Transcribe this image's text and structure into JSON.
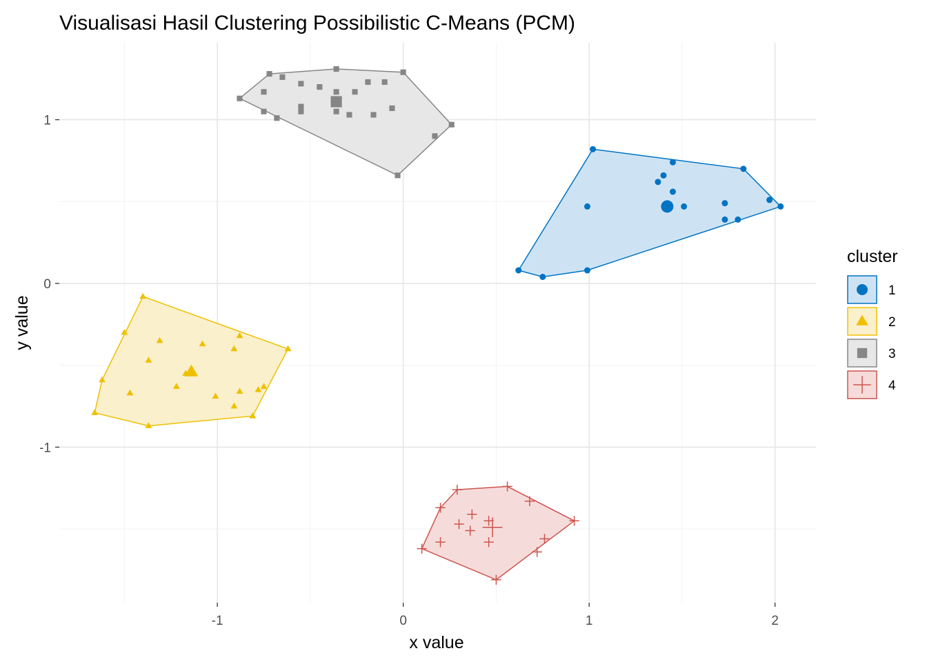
{
  "chart_data": {
    "type": "scatter",
    "title": "Visualisasi Hasil Clustering Possibilistic C-Means (PCM)",
    "xlabel": "x value",
    "ylabel": "y value",
    "xlim": [
      -1.85,
      2.22
    ],
    "ylim": [
      -1.95,
      1.47
    ],
    "x_ticks": [
      -1,
      0,
      1,
      2
    ],
    "x_tick_labels": [
      "-1",
      "0",
      "1",
      "2"
    ],
    "y_ticks": [
      -1,
      0,
      1
    ],
    "y_tick_labels": [
      "-1",
      "0",
      "1"
    ],
    "grid": true,
    "legend": {
      "title": "cluster",
      "position": "right"
    },
    "series": [
      {
        "name": "1",
        "shape": "circle",
        "color": "#0073C2",
        "fill": "#CDE3F4",
        "center": [
          1.42,
          0.47
        ],
        "hull": [
          [
            1.02,
            0.82
          ],
          [
            1.83,
            0.7
          ],
          [
            2.03,
            0.47
          ],
          [
            0.99,
            0.08
          ],
          [
            0.75,
            0.04
          ],
          [
            0.62,
            0.08
          ]
        ],
        "points": [
          [
            1.02,
            0.82
          ],
          [
            1.83,
            0.7
          ],
          [
            2.03,
            0.47
          ],
          [
            0.99,
            0.08
          ],
          [
            0.75,
            0.04
          ],
          [
            0.62,
            0.08
          ],
          [
            0.99,
            0.47
          ],
          [
            1.45,
            0.74
          ],
          [
            1.4,
            0.66
          ],
          [
            1.37,
            0.62
          ],
          [
            1.45,
            0.56
          ],
          [
            1.51,
            0.47
          ],
          [
            1.73,
            0.49
          ],
          [
            1.97,
            0.51
          ],
          [
            1.73,
            0.39
          ],
          [
            1.8,
            0.39
          ],
          [
            1.42,
            0.47
          ]
        ]
      },
      {
        "name": "2",
        "shape": "triangle",
        "color": "#EFC000",
        "fill": "#FAF0CC",
        "center": [
          -1.14,
          -0.54
        ],
        "hull": [
          [
            -1.4,
            -0.08
          ],
          [
            -0.62,
            -0.4
          ],
          [
            -0.81,
            -0.81
          ],
          [
            -1.37,
            -0.87
          ],
          [
            -1.66,
            -0.79
          ],
          [
            -1.62,
            -0.59
          ]
        ],
        "points": [
          [
            -1.4,
            -0.08
          ],
          [
            -0.62,
            -0.4
          ],
          [
            -0.81,
            -0.81
          ],
          [
            -1.37,
            -0.87
          ],
          [
            -1.66,
            -0.79
          ],
          [
            -1.62,
            -0.59
          ],
          [
            -1.5,
            -0.3
          ],
          [
            -1.31,
            -0.35
          ],
          [
            -1.37,
            -0.47
          ],
          [
            -1.08,
            -0.37
          ],
          [
            -0.91,
            -0.4
          ],
          [
            -0.88,
            -0.32
          ],
          [
            -1.17,
            -0.55
          ],
          [
            -1.22,
            -0.63
          ],
          [
            -1.47,
            -0.67
          ],
          [
            -1.01,
            -0.69
          ],
          [
            -0.88,
            -0.66
          ],
          [
            -0.78,
            -0.65
          ],
          [
            -0.75,
            -0.63
          ],
          [
            -0.91,
            -0.75
          ],
          [
            -1.14,
            -0.54
          ]
        ]
      },
      {
        "name": "3",
        "shape": "square",
        "color": "#868686",
        "fill": "#E7E7E7",
        "center": [
          -0.36,
          1.11
        ],
        "hull": [
          [
            -0.36,
            1.31
          ],
          [
            0.0,
            1.29
          ],
          [
            0.26,
            0.97
          ],
          [
            -0.03,
            0.66
          ],
          [
            -0.88,
            1.13
          ],
          [
            -0.72,
            1.28
          ]
        ],
        "points": [
          [
            -0.36,
            1.31
          ],
          [
            0.0,
            1.29
          ],
          [
            0.26,
            0.97
          ],
          [
            -0.03,
            0.66
          ],
          [
            -0.88,
            1.13
          ],
          [
            -0.72,
            1.28
          ],
          [
            -0.65,
            1.26
          ],
          [
            -0.55,
            1.22
          ],
          [
            -0.45,
            1.2
          ],
          [
            -0.36,
            1.17
          ],
          [
            -0.26,
            1.17
          ],
          [
            -0.19,
            1.23
          ],
          [
            -0.1,
            1.23
          ],
          [
            -0.75,
            1.17
          ],
          [
            -0.55,
            1.08
          ],
          [
            -0.55,
            1.05
          ],
          [
            -0.36,
            1.05
          ],
          [
            -0.29,
            1.03
          ],
          [
            -0.16,
            1.03
          ],
          [
            -0.06,
            1.07
          ],
          [
            -0.75,
            1.05
          ],
          [
            -0.68,
            1.01
          ],
          [
            0.17,
            0.9
          ],
          [
            -0.36,
            1.11
          ]
        ]
      },
      {
        "name": "4",
        "shape": "plus",
        "color": "#CD534C",
        "fill": "#F5DCDB",
        "center": [
          0.48,
          -1.49
        ],
        "hull": [
          [
            0.29,
            -1.26
          ],
          [
            0.56,
            -1.24
          ],
          [
            0.92,
            -1.45
          ],
          [
            0.5,
            -1.81
          ],
          [
            0.1,
            -1.62
          ],
          [
            0.2,
            -1.37
          ]
        ],
        "points": [
          [
            0.29,
            -1.26
          ],
          [
            0.56,
            -1.24
          ],
          [
            0.92,
            -1.45
          ],
          [
            0.5,
            -1.81
          ],
          [
            0.1,
            -1.62
          ],
          [
            0.2,
            -1.37
          ],
          [
            0.37,
            -1.41
          ],
          [
            0.46,
            -1.45
          ],
          [
            0.68,
            -1.33
          ],
          [
            0.3,
            -1.47
          ],
          [
            0.36,
            -1.51
          ],
          [
            0.2,
            -1.58
          ],
          [
            0.46,
            -1.58
          ],
          [
            0.72,
            -1.64
          ],
          [
            0.76,
            -1.56
          ],
          [
            0.48,
            -1.49
          ]
        ]
      }
    ]
  }
}
